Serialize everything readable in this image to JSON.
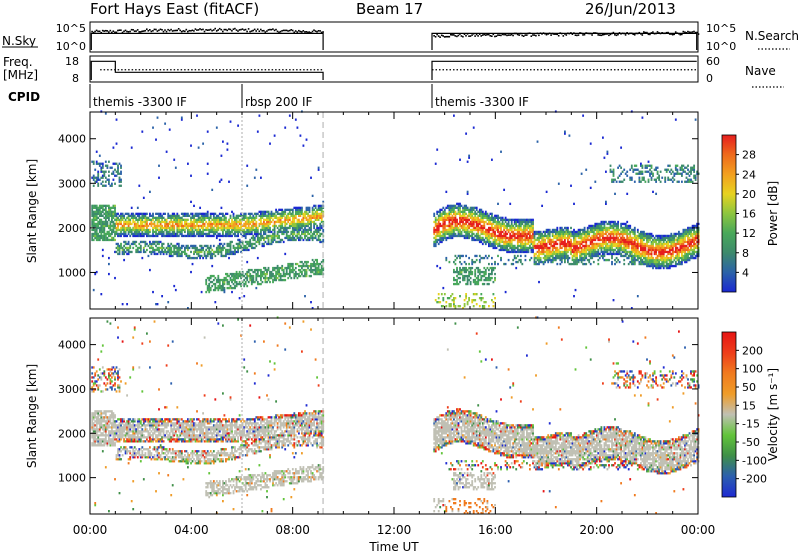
{
  "header": {
    "title": "Fort Hays East (fitACF)",
    "beam": "Beam 17",
    "date": "26/Jun/2013"
  },
  "noise_panel": {
    "left_label": "N.Sky",
    "left_ticks": [
      "10^5",
      "10^0"
    ],
    "right_label": "N.Search",
    "right_ticks": [
      "10^5",
      "10^0"
    ]
  },
  "freq_panel": {
    "left_label_1": "Freq.",
    "left_label_2": "[MHz]",
    "left_ticks": [
      "18",
      "8"
    ],
    "right_label": "Nave",
    "right_ticks": [
      "60",
      "0"
    ]
  },
  "cpid_panel": {
    "label": "CPID",
    "segments": [
      {
        "start_h": 0.0,
        "end_h": 6.0,
        "label": "themis -3300 IF"
      },
      {
        "start_h": 6.0,
        "end_h": 9.2,
        "label": "rbsp 200 IF"
      },
      {
        "start_h": 13.5,
        "end_h": 24.0,
        "label": "themis -3300 IF"
      }
    ]
  },
  "chart_data": [
    {
      "type": "heatmap",
      "name": "power",
      "ylabel": "Slant Range [km]",
      "ylim": [
        180,
        4600
      ],
      "yticks": [
        1000,
        2000,
        3000,
        4000
      ],
      "xlim": [
        0,
        24
      ],
      "colorbar": {
        "label": "Power [dB]",
        "range": [
          0,
          32
        ],
        "ticks": [
          4,
          8,
          12,
          16,
          20,
          24,
          28
        ],
        "colors": [
          "#1a28d2",
          "#2b62a8",
          "#3d8a6c",
          "#48a85a",
          "#8dc63f",
          "#e7d21f",
          "#f3a01f",
          "#ee6a1c",
          "#e61e1e"
        ]
      },
      "data_gaps": [
        [
          9.2,
          13.5
        ]
      ]
    },
    {
      "type": "heatmap",
      "name": "velocity",
      "ylabel": "Slant Range [km]",
      "ylim": [
        180,
        4600
      ],
      "yticks": [
        1000,
        2000,
        3000,
        4000
      ],
      "xlim": [
        0,
        24
      ],
      "colorbar": {
        "label": "Velocity [m s⁻¹]",
        "range": [
          -250,
          250
        ],
        "ticks": [
          "200",
          "100",
          "50",
          "15",
          "-15",
          "-50",
          "-100",
          "-200"
        ],
        "colors": [
          "#1e2ad2",
          "#2c5fae",
          "#3f8f48",
          "#62c43a",
          "#c0c0b4",
          "#ef9c28",
          "#f07a1e",
          "#ee3d1a",
          "#e61414"
        ]
      },
      "data_gaps": [
        [
          9.2,
          13.5
        ]
      ]
    }
  ],
  "time_axis": {
    "label": "Time UT",
    "ticks": [
      "00:00",
      "04:00",
      "08:00",
      "12:00",
      "16:00",
      "20:00",
      "00:00"
    ]
  }
}
